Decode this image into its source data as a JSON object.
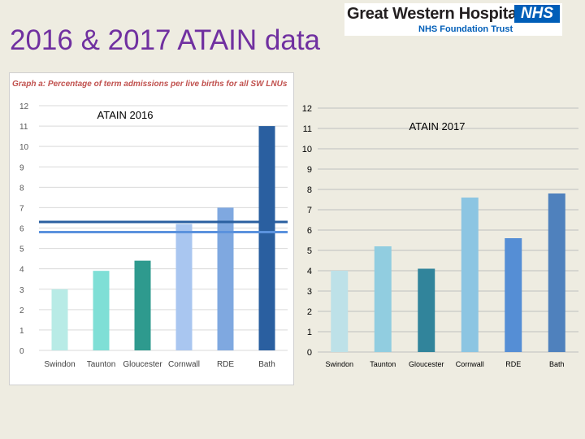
{
  "slide": {
    "title": "2016 & 2017 ATAIN data"
  },
  "logo": {
    "name": "Great Western Hospitals",
    "badge": "NHS",
    "subtitle": "NHS Foundation Trust"
  },
  "chart_data": [
    {
      "type": "bar",
      "title": "Graph a: Percentage of term admissions per live births for all SW LNUs",
      "subtitle": "ATAIN 2016",
      "categories": [
        "Swindon",
        "Taunton",
        "Gloucester",
        "Cornwall",
        "RDE",
        "Bath"
      ],
      "values": [
        3.0,
        3.9,
        4.4,
        6.2,
        7.0,
        11.0
      ],
      "colors": [
        "#b8ebe6",
        "#7fdfd6",
        "#2e9a8e",
        "#a9c6f0",
        "#7fa8e0",
        "#2a5fa0"
      ],
      "reference_lines": [
        {
          "value": 6.3,
          "color": "#2a5fa0"
        },
        {
          "value": 5.8,
          "color": "#5b92dd"
        }
      ],
      "ylim": [
        0,
        12
      ],
      "yticks": [
        0,
        1,
        2,
        3,
        4,
        5,
        6,
        7,
        8,
        9,
        10,
        11,
        12
      ],
      "grid": true
    },
    {
      "type": "bar",
      "title": "ATAIN 2017",
      "categories": [
        "Swindon",
        "Taunton",
        "Gloucester",
        "Cornwall",
        "RDE",
        "Bath"
      ],
      "values": [
        4.0,
        5.2,
        4.1,
        7.6,
        5.6,
        7.8
      ],
      "colors": [
        "#bde1e8",
        "#91cde0",
        "#31849b",
        "#8cc5e2",
        "#558ed5",
        "#4f81bd"
      ],
      "ylim": [
        0,
        12
      ],
      "yticks": [
        0,
        1,
        2,
        3,
        4,
        5,
        6,
        7,
        8,
        9,
        10,
        11,
        12
      ],
      "grid": true
    }
  ]
}
